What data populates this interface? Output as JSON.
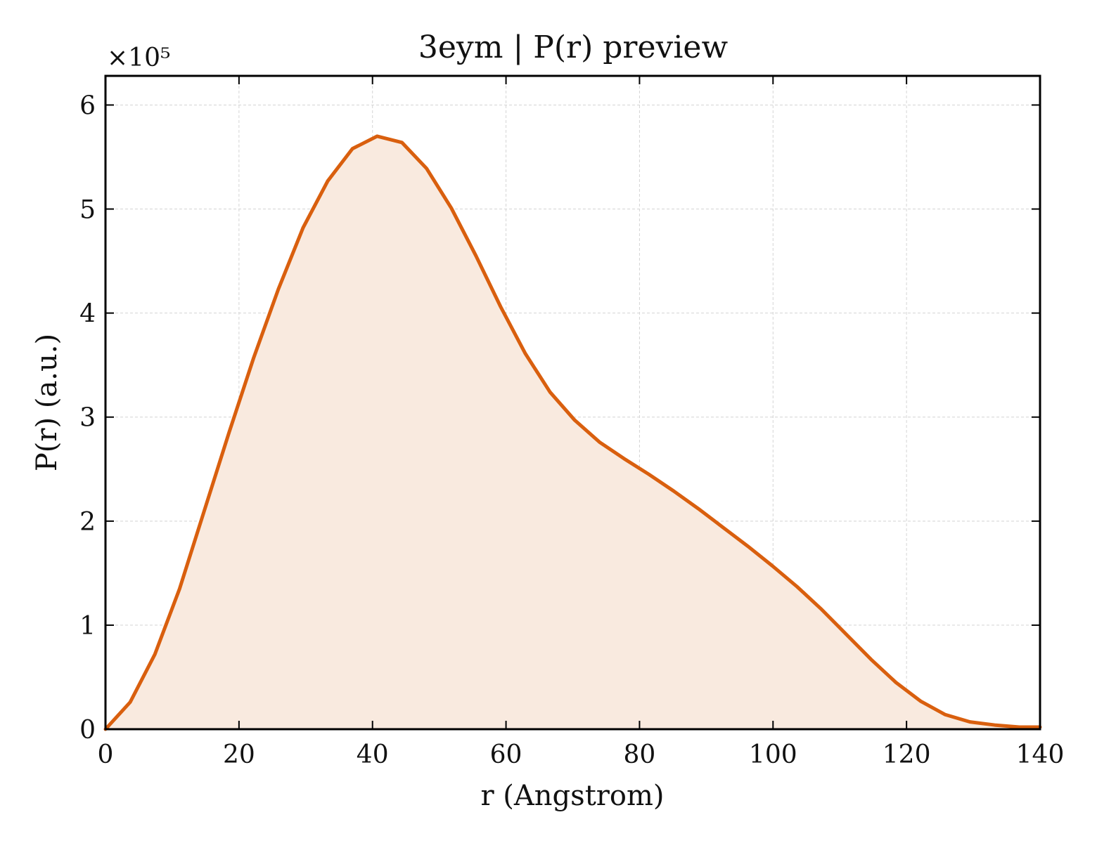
{
  "chart_data": {
    "type": "area",
    "title": "3eym | P(r) preview",
    "xlabel": "r (Angstrom)",
    "ylabel": "P(r) (a.u.)",
    "y_multiplier_label": "×10⁵",
    "xlim": [
      0,
      140
    ],
    "ylim": [
      0,
      6.28
    ],
    "xticks": [
      0,
      20,
      40,
      60,
      80,
      100,
      120,
      140
    ],
    "yticks": [
      0,
      1,
      2,
      3,
      4,
      5,
      6
    ],
    "grid": true,
    "line_color": "#d95f0e",
    "fill_color": "#f9eadf",
    "series": [
      {
        "x": [
          0,
          3.7,
          7.4,
          11.1,
          14.8,
          18.5,
          22.2,
          25.9,
          29.6,
          33.3,
          37.0,
          40.7,
          44.4,
          48.1,
          51.8,
          55.5,
          59.2,
          62.9,
          66.6,
          70.3,
          74.0,
          77.7,
          81.4,
          85.1,
          88.8,
          92.5,
          96.2,
          99.9,
          103.6,
          107.3,
          111.0,
          114.7,
          118.4,
          122.1,
          125.8,
          129.5,
          133.2,
          136.9,
          140.0
        ],
        "y": [
          0.0,
          0.26,
          0.72,
          1.35,
          2.1,
          2.85,
          3.57,
          4.23,
          4.82,
          5.27,
          5.58,
          5.7,
          5.64,
          5.39,
          5.01,
          4.55,
          4.06,
          3.61,
          3.24,
          2.97,
          2.76,
          2.6,
          2.45,
          2.29,
          2.12,
          1.94,
          1.76,
          1.57,
          1.37,
          1.15,
          0.91,
          0.67,
          0.45,
          0.27,
          0.14,
          0.07,
          0.04,
          0.02,
          0.02
        ]
      }
    ]
  }
}
